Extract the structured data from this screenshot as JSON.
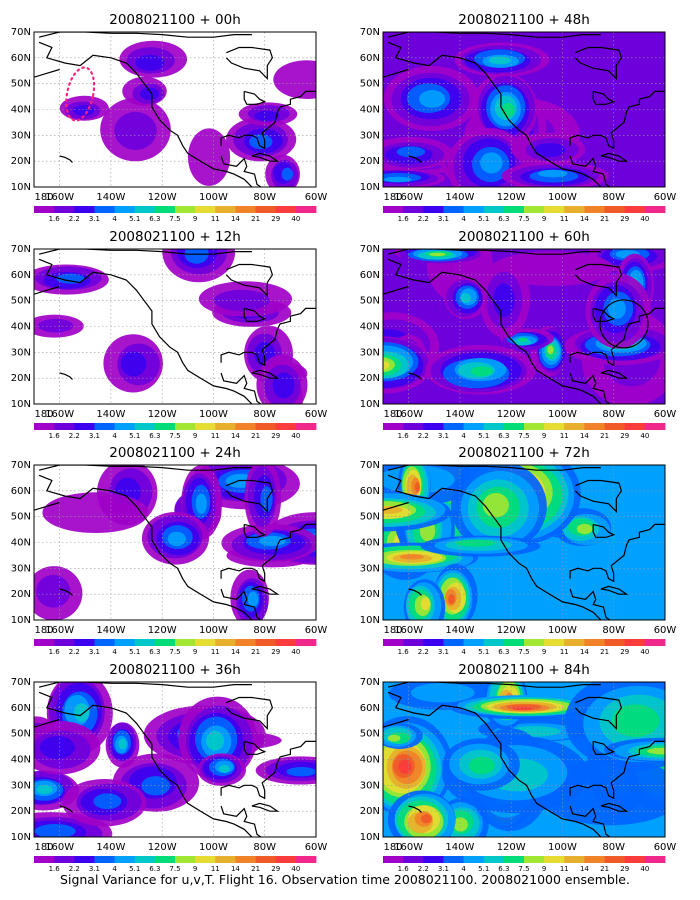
{
  "figure": {
    "caption": "Signal Variance for u,v,T. Flight 16. Observation time 2008021100. 2008021000 ensemble."
  },
  "map_axes": {
    "lon_labels": [
      "180",
      "160W",
      "140W",
      "120W",
      "100W",
      "80W",
      "60W"
    ],
    "lat_labels": [
      "10N",
      "20N",
      "30N",
      "40N",
      "50N",
      "60N",
      "70N"
    ],
    "lon_values": [
      180,
      -160,
      -140,
      -120,
      -100,
      -80,
      -60
    ],
    "lat_values": [
      10,
      20,
      30,
      40,
      50,
      60,
      70
    ],
    "lon_range": [
      -170,
      -60
    ],
    "lat_range": [
      10,
      70
    ],
    "grid": "dotted"
  },
  "colorbar": {
    "levels": [
      "1.6",
      "2.2",
      "3.1",
      "4",
      "5.1",
      "6.3",
      "7.5",
      "9",
      "11",
      "14",
      "21",
      "29",
      "40"
    ],
    "colors": [
      "#a000c8",
      "#6e00dc",
      "#3c00f0",
      "#0064ff",
      "#00a0ff",
      "#00c8c8",
      "#00dc78",
      "#a0e632",
      "#e6dc32",
      "#e6af2d",
      "#f08228",
      "#f05a28",
      "#fa3c3c",
      "#f0288c"
    ]
  },
  "panels": [
    {
      "id": "p00",
      "title": "2008021100 + 00h",
      "level": 1.0,
      "marker": "dotted-oval"
    },
    {
      "id": "p48",
      "title": "2008021100 + 48h",
      "level": 2.6,
      "marker": null
    },
    {
      "id": "p12",
      "title": "2008021100 + 12h",
      "level": 1.3,
      "marker": null
    },
    {
      "id": "p60",
      "title": "2008021100 + 60h",
      "level": 2.9,
      "marker": "circle"
    },
    {
      "id": "p24",
      "title": "2008021100 + 24h",
      "level": 1.7,
      "marker": null
    },
    {
      "id": "p72",
      "title": "2008021100 + 72h",
      "level": 3.2,
      "marker": null
    },
    {
      "id": "p36",
      "title": "2008021100 + 36h",
      "level": 2.1,
      "marker": null
    },
    {
      "id": "p84",
      "title": "2008021100 + 84h",
      "level": 3.5,
      "marker": null
    }
  ]
}
